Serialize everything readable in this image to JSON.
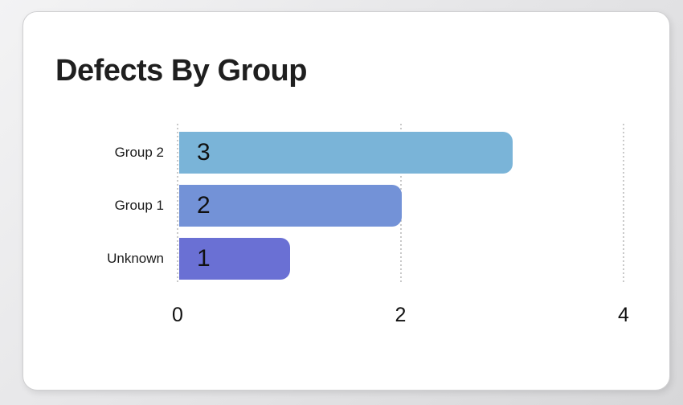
{
  "card": {
    "title": "Defects By Group"
  },
  "chart_data": {
    "type": "bar",
    "orientation": "horizontal",
    "title": "Defects By Group",
    "categories": [
      "Group 2",
      "Group 1",
      "Unknown"
    ],
    "values": [
      3,
      2,
      1
    ],
    "bar_colors": [
      "#7ab4d8",
      "#7392d7",
      "#6a70d4"
    ],
    "xlabel": "",
    "ylabel": "",
    "xlim": [
      0,
      4
    ],
    "xticks": [
      0,
      2,
      4
    ],
    "grid": "vertical-dotted",
    "legend": "none"
  },
  "colors": {
    "card_background": "#ffffff",
    "page_background": "#e3e3e5",
    "gridline": "#c9c9c9",
    "title_text": "#1f1f1f",
    "label_text": "#1a1a1a",
    "value_text": "#111111"
  }
}
